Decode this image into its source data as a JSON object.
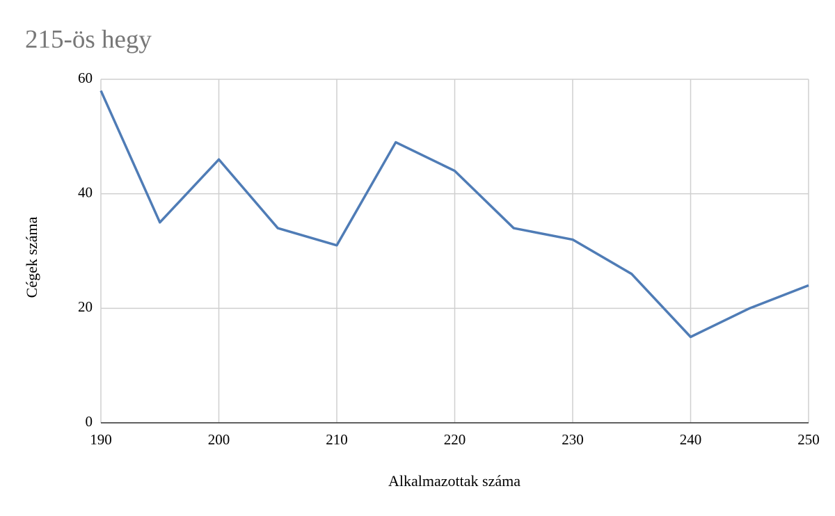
{
  "chart_data": {
    "type": "line",
    "title": "215-ös hegy",
    "x_label": "Alkalmazottak száma",
    "y_label": "Cégek száma",
    "x": [
      190,
      195,
      200,
      205,
      210,
      215,
      220,
      225,
      230,
      235,
      240,
      245,
      250
    ],
    "series": [
      {
        "name": "Cégek száma",
        "color": "#4f7cb6",
        "values": [
          58,
          35,
          46,
          34,
          31,
          49,
          44,
          34,
          32,
          26,
          15,
          20,
          24
        ]
      }
    ],
    "xlim": [
      190,
      250
    ],
    "xticks": [
      190,
      200,
      210,
      220,
      230,
      240,
      250
    ],
    "ylim": [
      0,
      60
    ],
    "yticks": [
      0,
      20,
      40,
      60
    ],
    "grid": true
  }
}
